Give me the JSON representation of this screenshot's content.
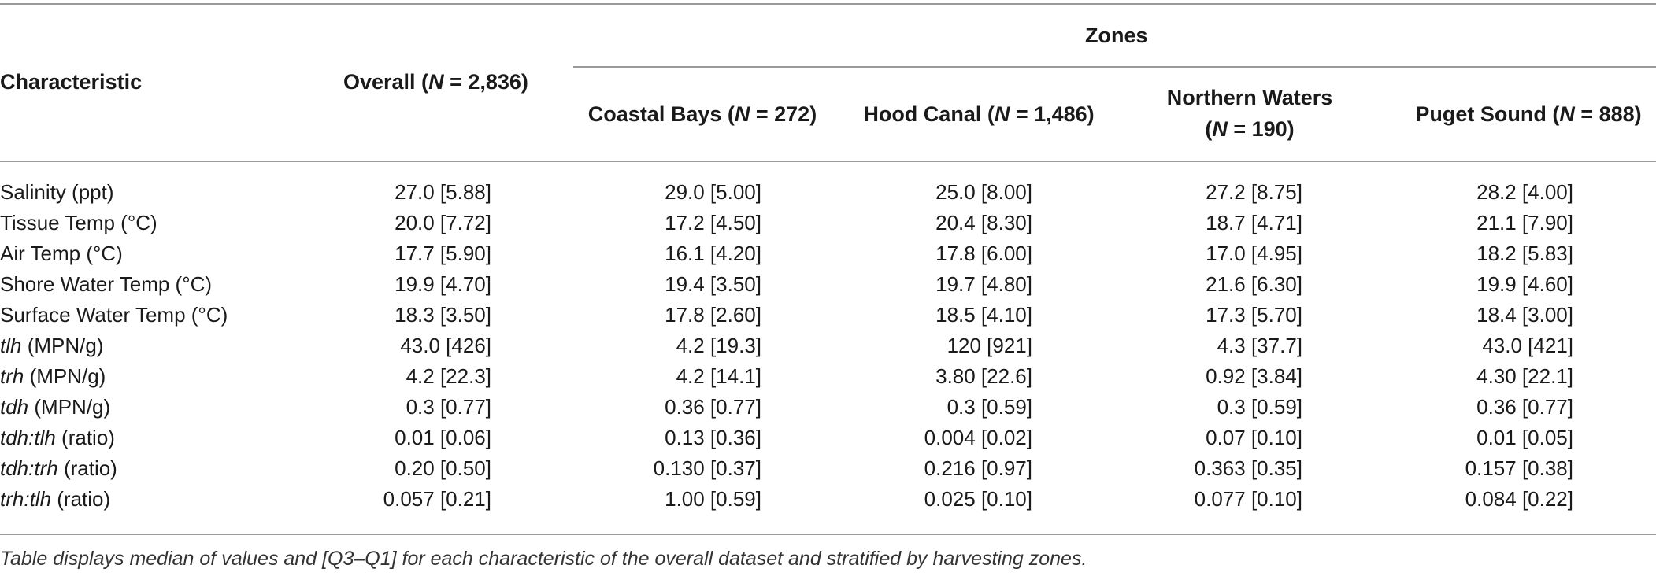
{
  "header": {
    "characteristic": "Characteristic",
    "overall_label": "Overall (",
    "overall_n": "N",
    "overall_val": " = 2,836)",
    "zones": "Zones",
    "coastal_label": "Coastal Bays (",
    "coastal_n": "N",
    "coastal_val": " = 272)",
    "hood_label": "Hood Canal (",
    "hood_n": "N",
    "hood_val": " = 1,486)",
    "north_label": "Northern Waters",
    "north_open": "(",
    "north_n": "N",
    "north_val": " = 190)",
    "puget_label": "Puget Sound (",
    "puget_n": "N",
    "puget_val": " = 888)"
  },
  "rows": [
    {
      "label_italic": "",
      "label": "Salinity (ppt)",
      "overall": "27.0 [5.88]",
      "coastal": "29.0 [5.00]",
      "hood": "25.0 [8.00]",
      "north": "27.2 [8.75]",
      "puget": "28.2 [4.00]"
    },
    {
      "label_italic": "",
      "label": "Tissue Temp (°C)",
      "overall": "20.0 [7.72]",
      "coastal": "17.2 [4.50]",
      "hood": "20.4 [8.30]",
      "north": "18.7 [4.71]",
      "puget": "21.1 [7.90]"
    },
    {
      "label_italic": "",
      "label": "Air Temp (°C)",
      "overall": "17.7 [5.90]",
      "coastal": "16.1 [4.20]",
      "hood": "17.8 [6.00]",
      "north": "17.0 [4.95]",
      "puget": "18.2 [5.83]"
    },
    {
      "label_italic": "",
      "label": "Shore Water Temp (°C)",
      "overall": "19.9 [4.70]",
      "coastal": "19.4 [3.50]",
      "hood": "19.7 [4.80]",
      "north": "21.6 [6.30]",
      "puget": "19.9 [4.60]"
    },
    {
      "label_italic": "",
      "label": "Surface Water Temp (°C)",
      "overall": "18.3 [3.50]",
      "coastal": "17.8 [2.60]",
      "hood": "18.5 [4.10]",
      "north": "17.3 [5.70]",
      "puget": "18.4 [3.00]"
    },
    {
      "label_italic": "tlh",
      "label": " (MPN/g)",
      "overall": "43.0 [426]",
      "coastal": "4.2 [19.3]",
      "hood": "120 [921]",
      "north": "4.3 [37.7]",
      "puget": "43.0 [421]"
    },
    {
      "label_italic": "trh",
      "label": " (MPN/g)",
      "overall": "4.2 [22.3]",
      "coastal": "4.2 [14.1]",
      "hood": "3.80 [22.6]",
      "north": "0.92 [3.84]",
      "puget": "4.30 [22.1]"
    },
    {
      "label_italic": "tdh",
      "label": " (MPN/g)",
      "overall": "0.3 [0.77]",
      "coastal": "0.36 [0.77]",
      "hood": "0.3 [0.59]",
      "north": "0.3 [0.59]",
      "puget": "0.36 [0.77]"
    },
    {
      "label_italic": "tdh:tlh",
      "label": " (ratio)",
      "overall": "0.01 [0.06]",
      "coastal": "0.13 [0.36]",
      "hood": "0.004 [0.02]",
      "north": "0.07 [0.10]",
      "puget": "0.01 [0.05]"
    },
    {
      "label_italic": "tdh:trh",
      "label": " (ratio)",
      "overall": "0.20 [0.50]",
      "coastal": "0.130 [0.37]",
      "hood": "0.216 [0.97]",
      "north": "0.363 [0.35]",
      "puget": "0.157 [0.38]"
    },
    {
      "label_italic": "trh:tlh",
      "label": " (ratio)",
      "overall": "0.057 [0.21]",
      "coastal": "1.00 [0.59]",
      "hood": "0.025 [0.10]",
      "north": "0.077 [0.10]",
      "puget": "0.084 [0.22]"
    }
  ],
  "footnote": "Table displays median of values and [Q3–Q1] for each characteristic of the overall dataset and stratified by harvesting zones."
}
